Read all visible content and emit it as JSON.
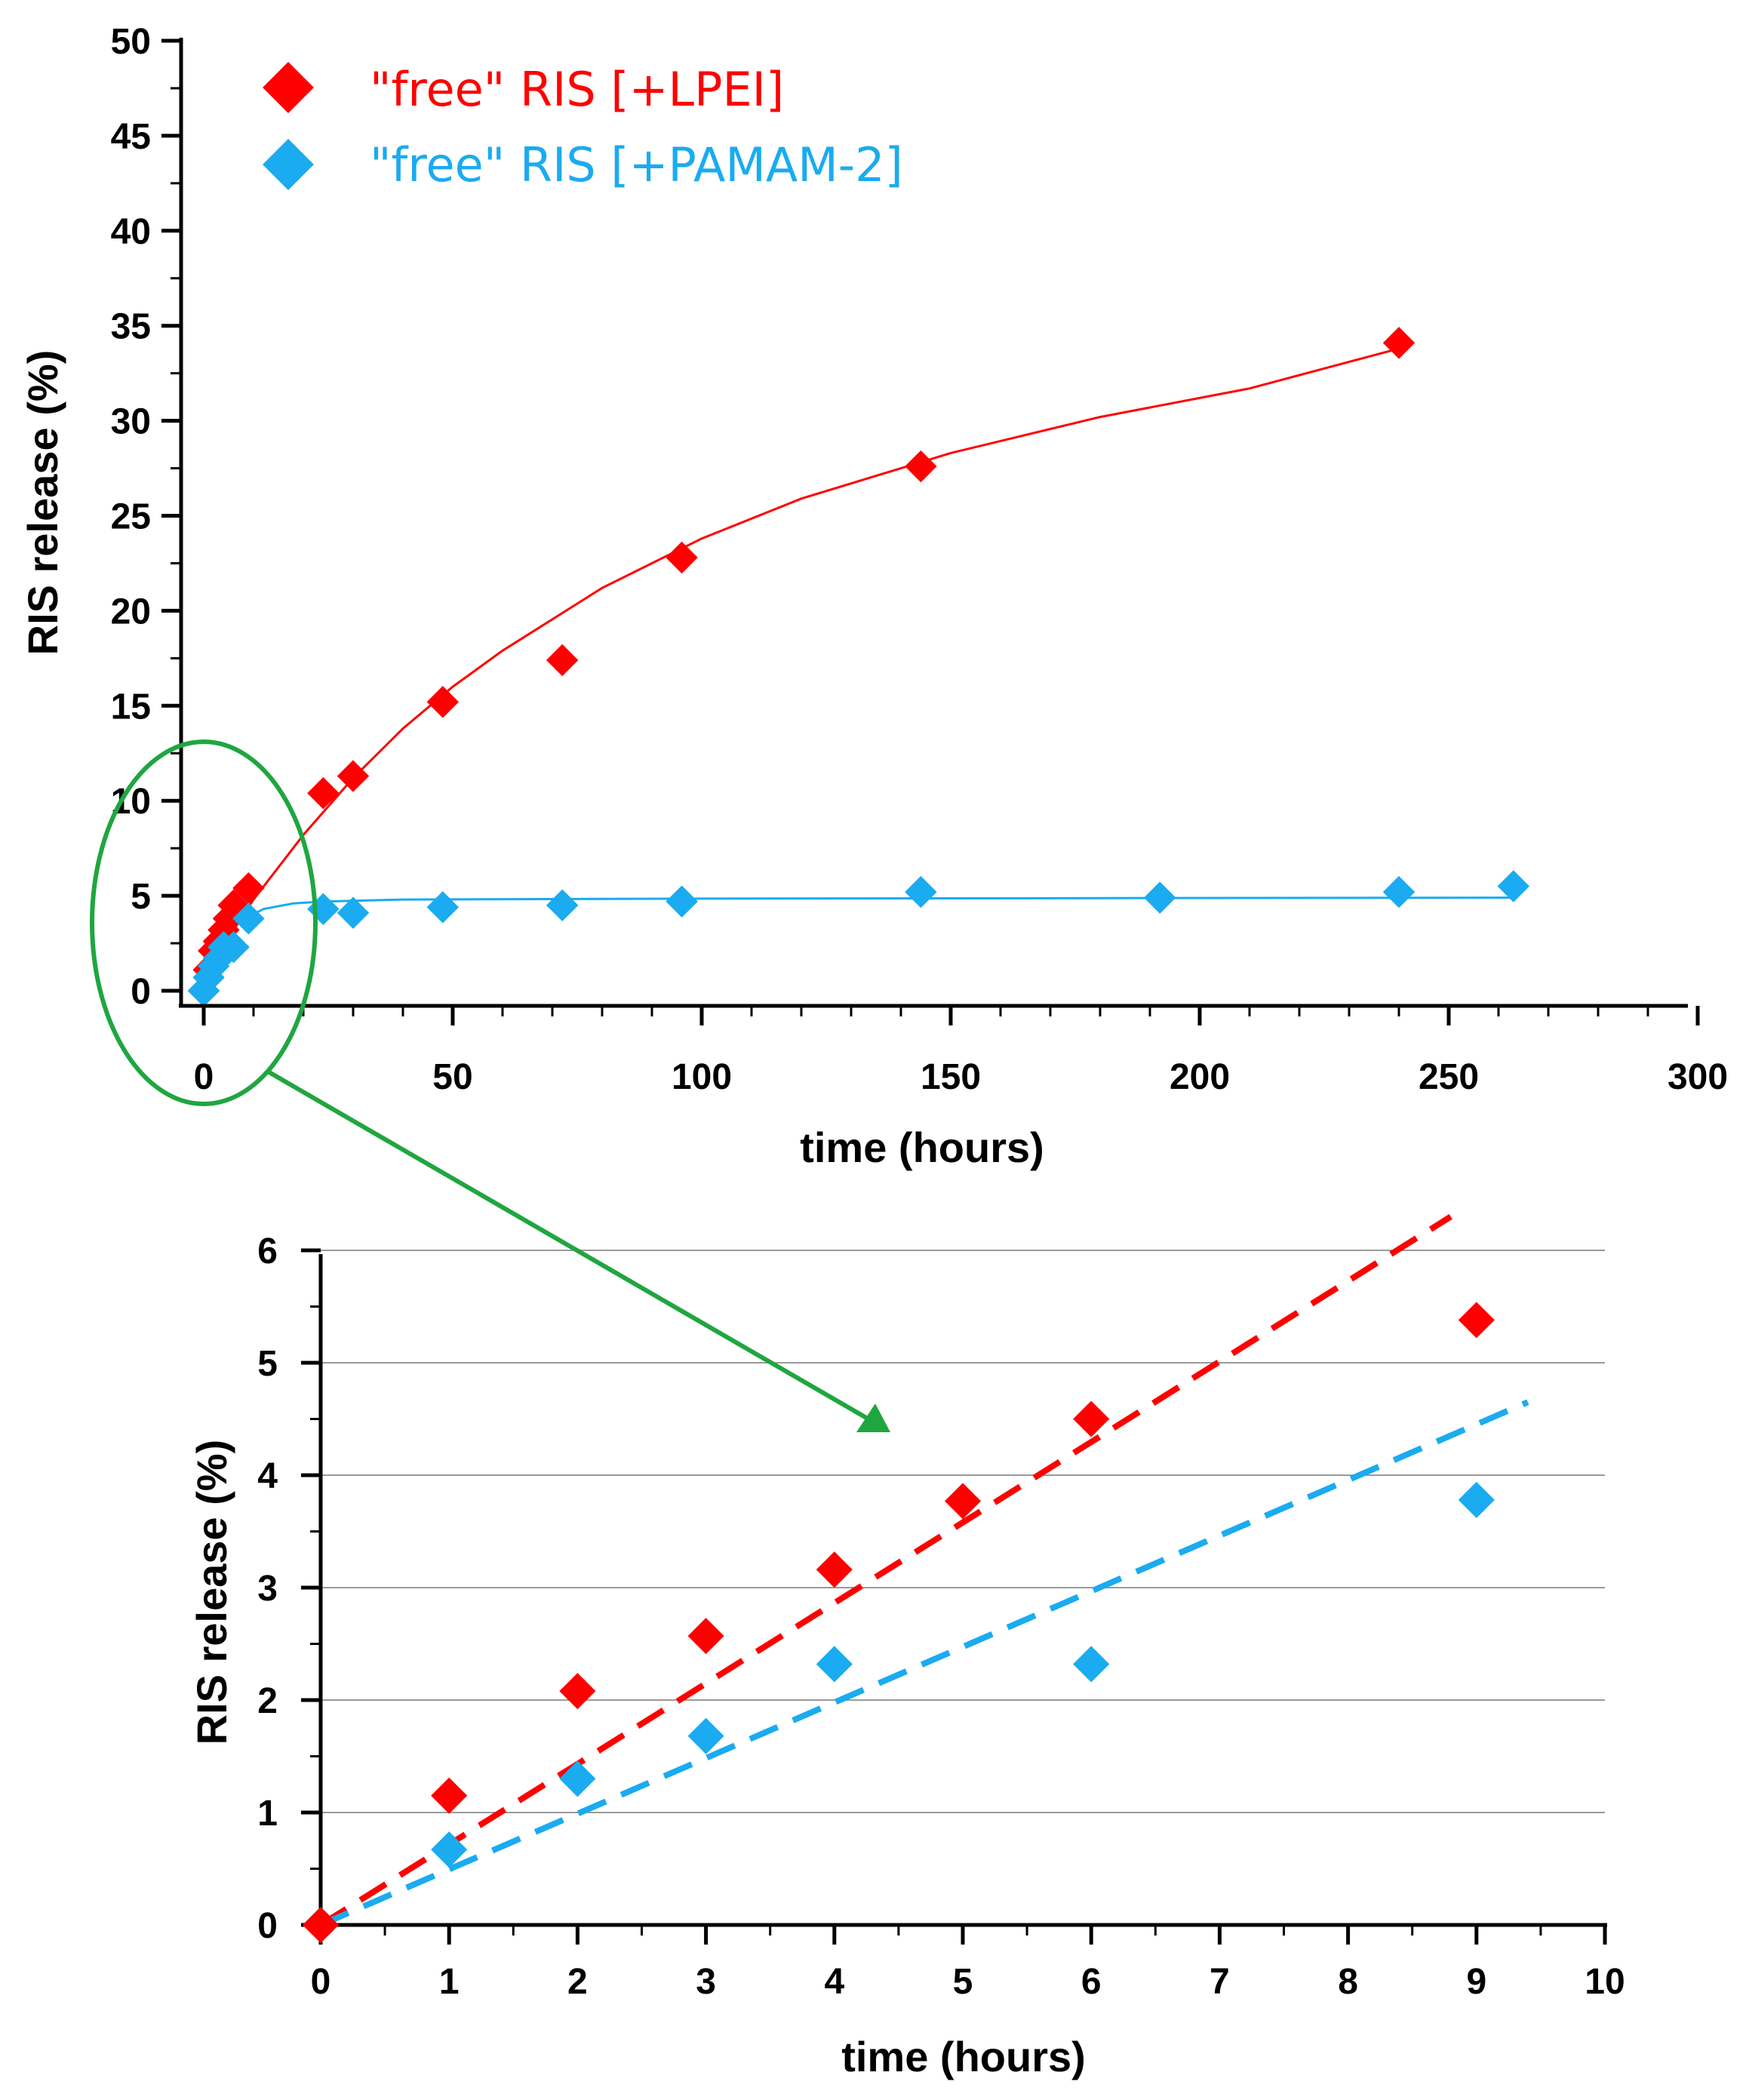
{
  "colors": {
    "lpei": "#ff0000",
    "pamam": "#1aabf0",
    "highlight": "#1fa640",
    "grid": "#9a9a9a",
    "axis": "#000000"
  },
  "chart_data": [
    {
      "type": "scatter",
      "panel": "top",
      "xlabel": "time (hours)",
      "ylabel": "RIS release (%)",
      "xlim": [
        0,
        300
      ],
      "ylim": [
        0,
        50
      ],
      "xticks": [
        "0",
        "50",
        "100",
        "150",
        "200",
        "250",
        "300"
      ],
      "yticks": [
        "0",
        "5",
        "10",
        "15",
        "20",
        "25",
        "30",
        "35",
        "40",
        "45",
        "50"
      ],
      "legend": {
        "position": "top-left",
        "entries": [
          "\"free\" RIS [+LPEI]",
          "\"free\" RIS [+PAMAM-2]"
        ]
      },
      "series": [
        {
          "name": "\"free\" RIS [+LPEI]",
          "x": [
            0,
            1,
            2,
            3,
            4,
            5,
            6,
            9,
            24,
            30,
            48,
            72,
            96,
            144,
            240
          ],
          "y": [
            0,
            1.1,
            2.1,
            2.6,
            3.2,
            3.8,
            4.5,
            5.4,
            10.4,
            11.3,
            15.2,
            17.4,
            22.8,
            27.6,
            34.1
          ],
          "fit": "0 0.0; 2 1.3; 5 2.8; 10 4.8; 20 8.2; 30 11.2; 40 13.8; 50 16.0; 60 17.9; 80 21.2; 100 23.8; 120 25.9; 150 28.3; 180 30.2; 210 31.7; 240 33.8"
        },
        {
          "name": "\"free\" RIS [+PAMAM-2]",
          "x": [
            0,
            1,
            2,
            3,
            4,
            6,
            9,
            24,
            30,
            48,
            72,
            96,
            144,
            192,
            240,
            263
          ],
          "y": [
            0,
            0.7,
            1.3,
            1.7,
            2.3,
            2.3,
            3.8,
            4.3,
            4.1,
            4.4,
            4.5,
            4.7,
            5.2,
            4.9,
            5.2,
            5.5
          ],
          "fit": "0 0.0; 2 1.6; 4 2.7; 6 3.4; 9 3.9; 12 4.3; 18 4.6; 24 4.7; 40 4.8; 100 4.85; 263 4.9"
        }
      ],
      "annotation": "green ellipse around 0-10 h region with arrow pointing to zoomed inset"
    },
    {
      "type": "scatter",
      "panel": "bottom",
      "xlabel": "time (hours)",
      "ylabel": "RIS release (%)",
      "xlim": [
        0,
        10
      ],
      "ylim": [
        0,
        6
      ],
      "grid": true,
      "xticks": [
        "0",
        "1",
        "2",
        "3",
        "4",
        "5",
        "6",
        "7",
        "8",
        "9",
        "10"
      ],
      "yticks": [
        "0",
        "1",
        "2",
        "3",
        "4",
        "5",
        "6"
      ],
      "series": [
        {
          "name": "\"free\" RIS [+LPEI]",
          "x": [
            0,
            1,
            2,
            3,
            4,
            5,
            6,
            9
          ],
          "y": [
            0,
            1.15,
            2.08,
            2.57,
            3.16,
            3.77,
            4.5,
            5.38
          ],
          "trend": {
            "x": [
              0,
              8.8
            ],
            "y": [
              0,
              6.3
            ]
          }
        },
        {
          "name": "\"free\" RIS [+PAMAM-2]",
          "x": [
            0,
            1,
            2,
            3,
            4,
            6,
            9
          ],
          "y": [
            0,
            0.67,
            1.3,
            1.68,
            2.32,
            2.32,
            3.78
          ],
          "trend": {
            "x": [
              0,
              9.4
            ],
            "y": [
              0,
              4.65
            ]
          }
        }
      ]
    }
  ]
}
